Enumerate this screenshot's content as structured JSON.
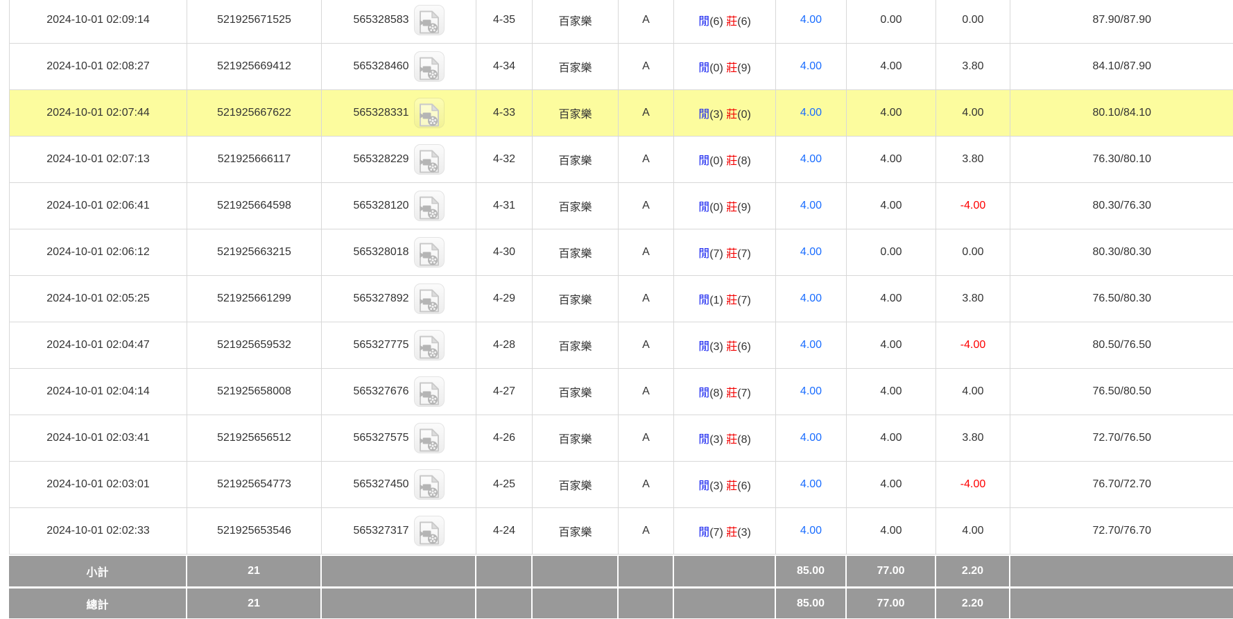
{
  "labels": {
    "player": "閒",
    "banker": "莊",
    "game_name": "百家樂"
  },
  "icons": {
    "video_button": "video-file-icon"
  },
  "colors": {
    "highlight_row": "#fcfc9e",
    "summary_bg": "#999999",
    "summary_text": "#ffffff",
    "link_blue": "#1a6dff",
    "player_blue": "#1420f0",
    "banker_red": "#f20000",
    "negative_red": "#fe0000",
    "text": "#333333",
    "border": "#d8d8d8"
  },
  "table": {
    "rows": [
      {
        "time": "2024-10-01 02:09:14",
        "bet_id": "521925671525",
        "round_id": "565328583",
        "shoe_round": "4-35",
        "game": "百家樂",
        "table_letter": "A",
        "player_score": "(6)",
        "banker_score": "(6)",
        "bet": "4.00",
        "valid_bet": "0.00",
        "win_loss": "0.00",
        "balance": "87.90/87.90",
        "highlighted": false
      },
      {
        "time": "2024-10-01 02:08:27",
        "bet_id": "521925669412",
        "round_id": "565328460",
        "shoe_round": "4-34",
        "game": "百家樂",
        "table_letter": "A",
        "player_score": "(0)",
        "banker_score": "(9)",
        "bet": "4.00",
        "valid_bet": "4.00",
        "win_loss": "3.80",
        "balance": "84.10/87.90",
        "highlighted": false
      },
      {
        "time": "2024-10-01 02:07:44",
        "bet_id": "521925667622",
        "round_id": "565328331",
        "shoe_round": "4-33",
        "game": "百家樂",
        "table_letter": "A",
        "player_score": "(3)",
        "banker_score": "(0)",
        "bet": "4.00",
        "valid_bet": "4.00",
        "win_loss": "4.00",
        "balance": "80.10/84.10",
        "highlighted": true
      },
      {
        "time": "2024-10-01 02:07:13",
        "bet_id": "521925666117",
        "round_id": "565328229",
        "shoe_round": "4-32",
        "game": "百家樂",
        "table_letter": "A",
        "player_score": "(0)",
        "banker_score": "(8)",
        "bet": "4.00",
        "valid_bet": "4.00",
        "win_loss": "3.80",
        "balance": "76.30/80.10",
        "highlighted": false
      },
      {
        "time": "2024-10-01 02:06:41",
        "bet_id": "521925664598",
        "round_id": "565328120",
        "shoe_round": "4-31",
        "game": "百家樂",
        "table_letter": "A",
        "player_score": "(0)",
        "banker_score": "(9)",
        "bet": "4.00",
        "valid_bet": "4.00",
        "win_loss": "-4.00",
        "balance": "80.30/76.30",
        "highlighted": false
      },
      {
        "time": "2024-10-01 02:06:12",
        "bet_id": "521925663215",
        "round_id": "565328018",
        "shoe_round": "4-30",
        "game": "百家樂",
        "table_letter": "A",
        "player_score": "(7)",
        "banker_score": "(7)",
        "bet": "4.00",
        "valid_bet": "0.00",
        "win_loss": "0.00",
        "balance": "80.30/80.30",
        "highlighted": false
      },
      {
        "time": "2024-10-01 02:05:25",
        "bet_id": "521925661299",
        "round_id": "565327892",
        "shoe_round": "4-29",
        "game": "百家樂",
        "table_letter": "A",
        "player_score": "(1)",
        "banker_score": "(7)",
        "bet": "4.00",
        "valid_bet": "4.00",
        "win_loss": "3.80",
        "balance": "76.50/80.30",
        "highlighted": false
      },
      {
        "time": "2024-10-01 02:04:47",
        "bet_id": "521925659532",
        "round_id": "565327775",
        "shoe_round": "4-28",
        "game": "百家樂",
        "table_letter": "A",
        "player_score": "(3)",
        "banker_score": "(6)",
        "bet": "4.00",
        "valid_bet": "4.00",
        "win_loss": "-4.00",
        "balance": "80.50/76.50",
        "highlighted": false
      },
      {
        "time": "2024-10-01 02:04:14",
        "bet_id": "521925658008",
        "round_id": "565327676",
        "shoe_round": "4-27",
        "game": "百家樂",
        "table_letter": "A",
        "player_score": "(8)",
        "banker_score": "(7)",
        "bet": "4.00",
        "valid_bet": "4.00",
        "win_loss": "4.00",
        "balance": "76.50/80.50",
        "highlighted": false
      },
      {
        "time": "2024-10-01 02:03:41",
        "bet_id": "521925656512",
        "round_id": "565327575",
        "shoe_round": "4-26",
        "game": "百家樂",
        "table_letter": "A",
        "player_score": "(3)",
        "banker_score": "(8)",
        "bet": "4.00",
        "valid_bet": "4.00",
        "win_loss": "3.80",
        "balance": "72.70/76.50",
        "highlighted": false
      },
      {
        "time": "2024-10-01 02:03:01",
        "bet_id": "521925654773",
        "round_id": "565327450",
        "shoe_round": "4-25",
        "game": "百家樂",
        "table_letter": "A",
        "player_score": "(3)",
        "banker_score": "(6)",
        "bet": "4.00",
        "valid_bet": "4.00",
        "win_loss": "-4.00",
        "balance": "76.70/72.70",
        "highlighted": false
      },
      {
        "time": "2024-10-01 02:02:33",
        "bet_id": "521925653546",
        "round_id": "565327317",
        "shoe_round": "4-24",
        "game": "百家樂",
        "table_letter": "A",
        "player_score": "(7)",
        "banker_score": "(3)",
        "bet": "4.00",
        "valid_bet": "4.00",
        "win_loss": "4.00",
        "balance": "72.70/76.70",
        "highlighted": false
      }
    ],
    "summary": [
      {
        "label": "小計",
        "count": "21",
        "bet_total": "85.00",
        "valid_total": "77.00",
        "win_loss_total": "2.20"
      },
      {
        "label": "總計",
        "count": "21",
        "bet_total": "85.00",
        "valid_total": "77.00",
        "win_loss_total": "2.20"
      }
    ]
  }
}
